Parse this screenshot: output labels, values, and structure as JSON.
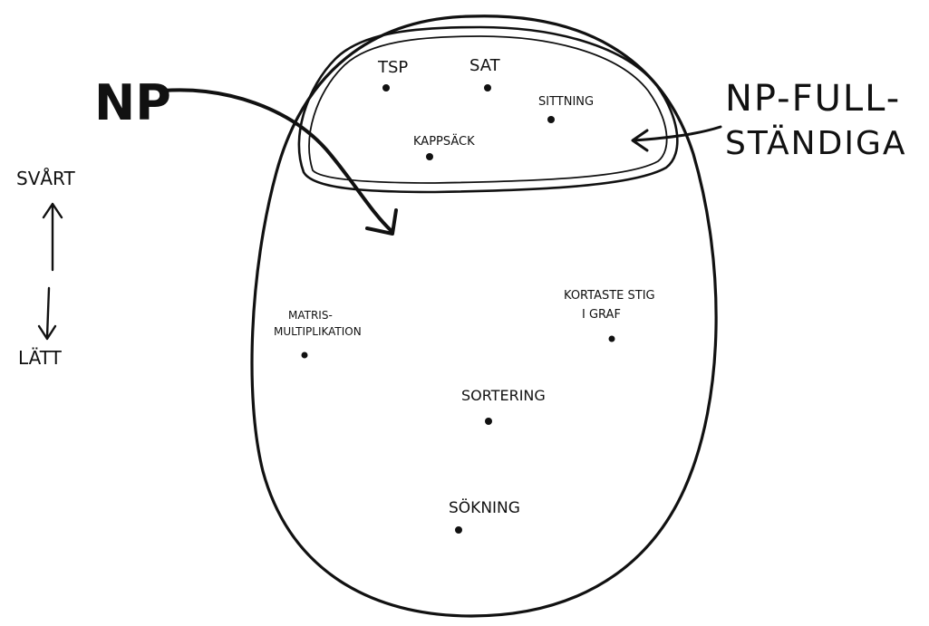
{
  "diagram": {
    "np_label": "NP",
    "np_complete_label_line1": "NP-FULL-",
    "np_complete_label_line2": "STÄNDIGA",
    "axis_top_label": "SVÅRT",
    "axis_bottom_label": "LÄTT",
    "problems": {
      "tsp": "TSP",
      "sat": "SAT",
      "sittning": "SITTNING",
      "kappsack": "KAPPSÄCK",
      "matris_line1": "MATRIS-",
      "matris_line2": "MULTIPLIKATION",
      "kortaste_line1": "KORTASTE STIG",
      "kortaste_line2": "I GRAF",
      "sortering": "SORTERING",
      "sokning": "SÖKNING"
    }
  }
}
